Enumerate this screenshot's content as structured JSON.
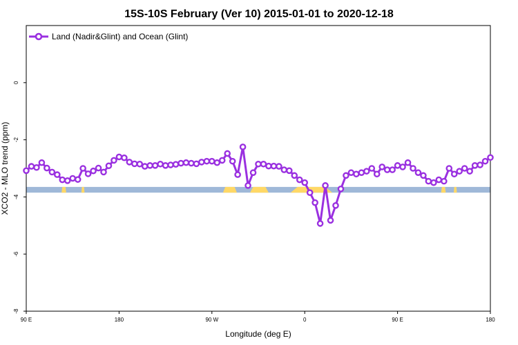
{
  "chart_data": {
    "type": "line",
    "title": "15S-10S February (Ver 10)   2015-01-01 to 2020-12-18",
    "xlabel": "Longitude (deg E)",
    "ylabel": "XCO2 - MLO trend (ppm)",
    "x_ticks": [
      {
        "value": 90,
        "label": "90 E"
      },
      {
        "value": 180,
        "label": "180"
      },
      {
        "value": 270,
        "label": "90 W"
      },
      {
        "value": 360,
        "label": "0"
      },
      {
        "value": 450,
        "label": "90 E"
      },
      {
        "value": 540,
        "label": "180"
      }
    ],
    "y_ticks": [
      {
        "value": 0,
        "label": "0"
      },
      {
        "value": -2,
        "label": "-2"
      },
      {
        "value": -4,
        "label": "-4"
      },
      {
        "value": -6,
        "label": "-6"
      },
      {
        "value": -8,
        "label": "-8"
      }
    ],
    "xlim": [
      90,
      540
    ],
    "ylim": [
      -8,
      2
    ],
    "grid": false,
    "legend_position": "top-left",
    "colors": {
      "line": "#9a30e0",
      "ocean": "#9fb8d8",
      "land": "#ffd866"
    },
    "series": [
      {
        "name": "Land (Nadir&Glint) and Ocean (Glint)",
        "x": [
          90,
          95,
          100,
          105,
          110,
          115,
          120,
          125,
          130,
          135,
          140,
          145,
          150,
          155,
          160,
          165,
          170,
          175,
          180,
          185,
          190,
          195,
          200,
          205,
          210,
          215,
          220,
          225,
          230,
          235,
          240,
          245,
          250,
          255,
          260,
          265,
          270,
          275,
          280,
          285,
          290,
          295,
          300,
          305,
          310,
          315,
          320,
          325,
          330,
          335,
          340,
          345,
          350,
          355,
          360,
          365,
          370,
          375,
          380,
          385,
          390,
          395,
          400,
          405,
          410,
          415,
          420,
          425,
          430,
          435,
          440,
          445,
          450,
          455,
          460,
          465,
          470,
          475,
          480,
          485,
          490,
          495,
          500,
          505,
          510,
          515,
          520,
          525,
          530,
          535,
          540
        ],
        "y": [
          -3.08,
          -2.93,
          -2.97,
          -2.8,
          -2.99,
          -3.13,
          -3.22,
          -3.4,
          -3.43,
          -3.35,
          -3.39,
          -3.0,
          -3.19,
          -3.09,
          -2.99,
          -3.13,
          -2.91,
          -2.72,
          -2.6,
          -2.63,
          -2.78,
          -2.84,
          -2.85,
          -2.93,
          -2.9,
          -2.9,
          -2.85,
          -2.9,
          -2.88,
          -2.86,
          -2.82,
          -2.8,
          -2.82,
          -2.84,
          -2.78,
          -2.75,
          -2.75,
          -2.8,
          -2.72,
          -2.48,
          -2.75,
          -3.22,
          -2.25,
          -3.6,
          -3.15,
          -2.85,
          -2.85,
          -2.92,
          -2.92,
          -2.93,
          -3.05,
          -3.08,
          -3.25,
          -3.4,
          -3.5,
          -3.85,
          -4.2,
          -4.93,
          -3.6,
          -4.82,
          -4.3,
          -3.72,
          -3.25,
          -3.15,
          -3.2,
          -3.15,
          -3.1,
          -3.0,
          -3.2,
          -2.95,
          -3.05,
          -3.05,
          -2.9,
          -2.95,
          -2.8,
          -3.0,
          -3.15,
          -3.25,
          -3.45,
          -3.5,
          -3.4,
          -3.45,
          -3.0,
          -3.2,
          -3.1,
          -3.0,
          -3.1,
          -2.9,
          -2.88,
          -2.75,
          -2.62
        ]
      }
    ],
    "surface_band": {
      "y_range": [
        -3.65,
        -3.85
      ],
      "land_segments": [
        [
          125,
          128
        ],
        [
          144,
          146
        ],
        [
          283,
          292
        ],
        [
          310,
          322
        ],
        [
          353,
          380
        ],
        [
          493,
          496
        ],
        [
          505,
          507
        ]
      ]
    }
  }
}
